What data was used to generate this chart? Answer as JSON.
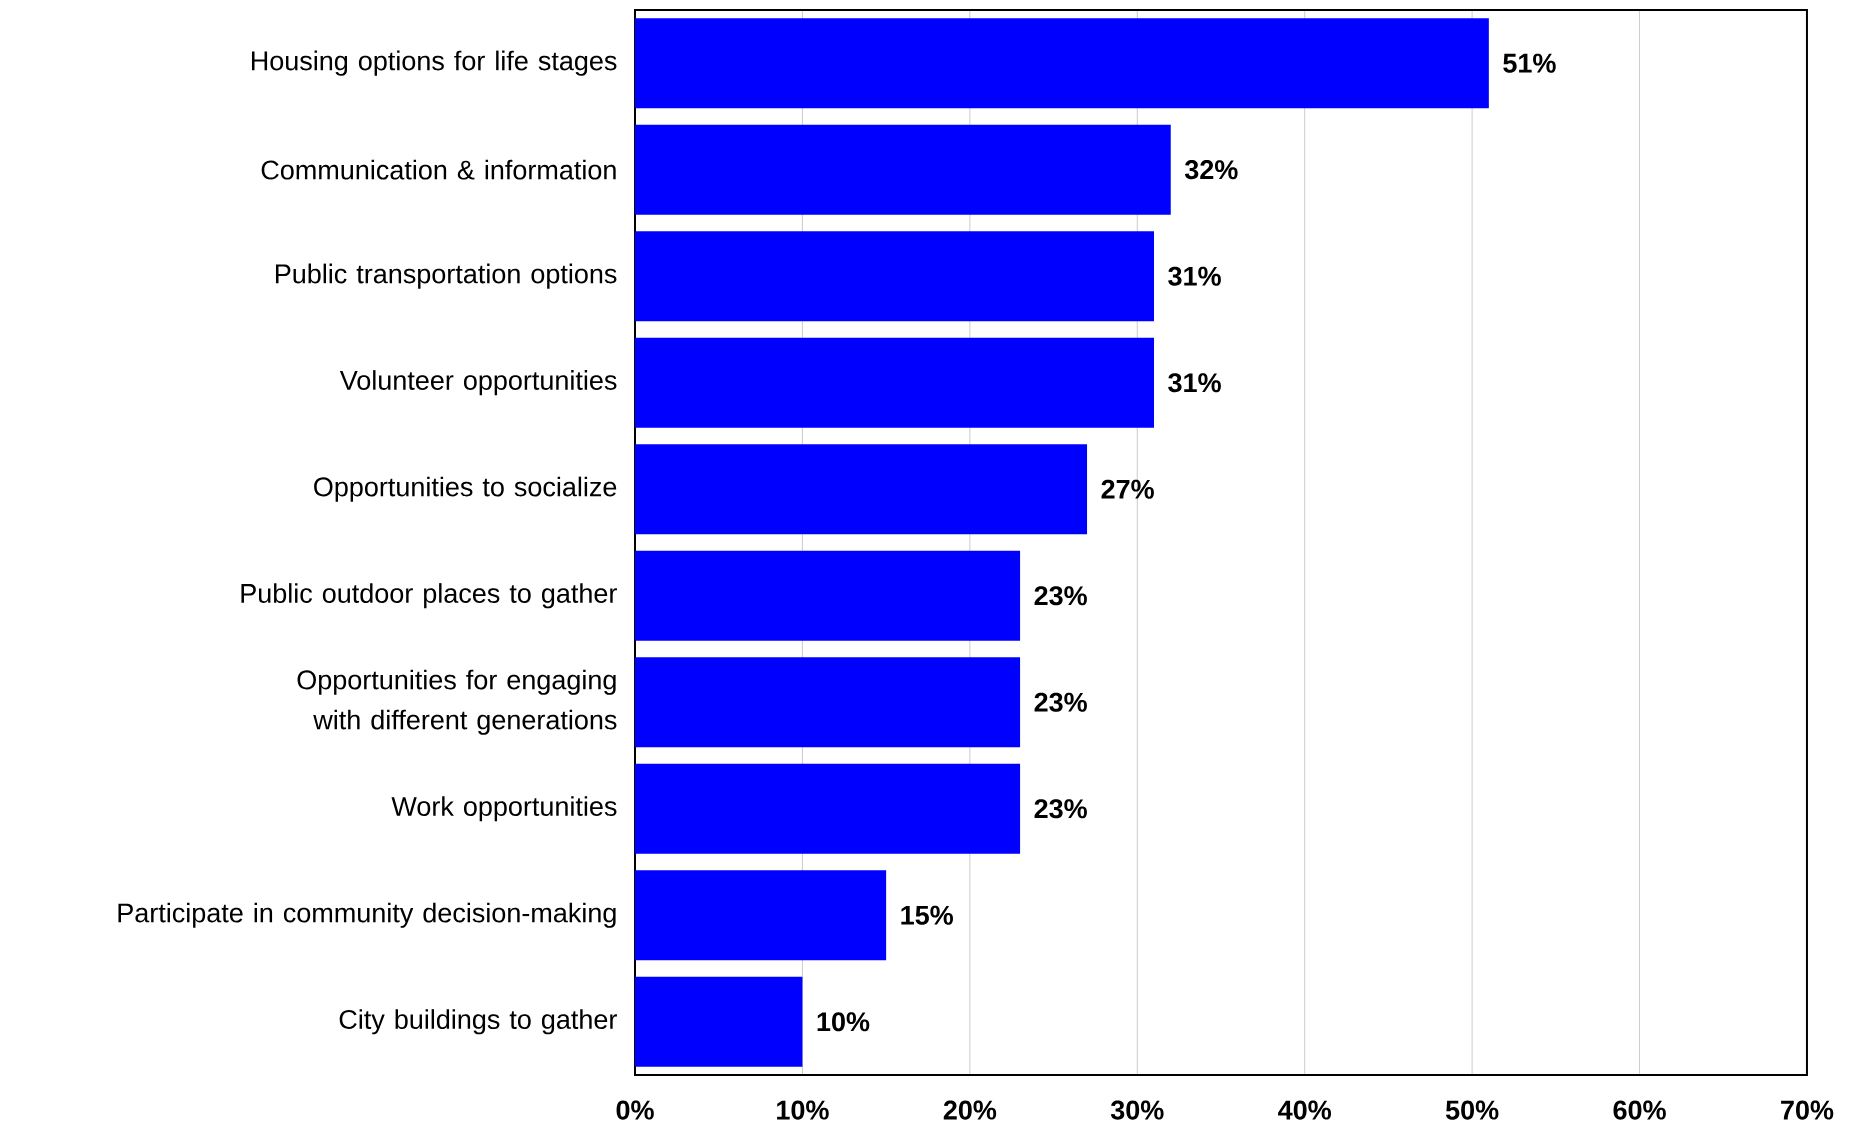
{
  "chart_data": {
    "type": "bar",
    "orientation": "horizontal",
    "categories": [
      "Housing options for life stages",
      "Communication & information",
      "Public transportation options",
      "Volunteer opportunities",
      "Opportunities to socialize",
      "Public outdoor places to gather",
      "Opportunities for engaging with different generations",
      "Work opportunities",
      "Participate in community decision-making",
      "City buildings to gather"
    ],
    "values": [
      51,
      32,
      31,
      31,
      27,
      23,
      23,
      23,
      15,
      10
    ],
    "value_labels": [
      "51%",
      "32%",
      "31%",
      "31%",
      "27%",
      "23%",
      "23%",
      "23%",
      "15%",
      "10%"
    ],
    "color": "#0000ff",
    "xlim": [
      0,
      70
    ],
    "xticks": [
      {
        "value": 0,
        "label": "0%"
      },
      {
        "value": 10,
        "label": "10%"
      },
      {
        "value": 20,
        "label": "20%"
      },
      {
        "value": 30,
        "label": "30%"
      },
      {
        "value": 40,
        "label": "40%"
      },
      {
        "value": 50,
        "label": "50%"
      },
      {
        "value": 60,
        "label": "60%"
      },
      {
        "value": 70,
        "label": "70%"
      }
    ],
    "grid": "x"
  }
}
